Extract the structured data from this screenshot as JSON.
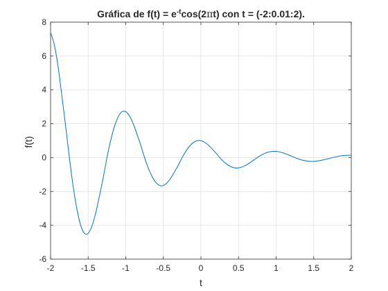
{
  "chart_data": {
    "type": "line",
    "title_main": "Gráfica de f(t) = e",
    "title_sup": "-t",
    "title_mid": "cos(2",
    "title_pi": "π",
    "title_end": "t) con t = (-2:0.01:2).",
    "xlabel": "t",
    "ylabel": "f(t)",
    "xlim": [
      -2,
      2
    ],
    "ylim": [
      -6,
      8
    ],
    "xticks": [
      -2,
      -1.5,
      -1,
      -0.5,
      0,
      0.5,
      1,
      1.5,
      2
    ],
    "xtick_labels": [
      "-2",
      "-1.5",
      "-1",
      "-0.5",
      "0",
      "0.5",
      "1",
      "1.5",
      "2"
    ],
    "yticks": [
      -6,
      -4,
      -2,
      0,
      2,
      4,
      6,
      8
    ],
    "ytick_labels": [
      "-6",
      "-4",
      "-2",
      "0",
      "2",
      "4",
      "6",
      "8"
    ],
    "grid": true,
    "series": [
      {
        "color": "#0072BD",
        "x": [
          -2.0,
          -1.95,
          -1.9,
          -1.85,
          -1.8,
          -1.75,
          -1.7,
          -1.65,
          -1.6,
          -1.55,
          -1.5,
          -1.45,
          -1.4,
          -1.35,
          -1.3,
          -1.25,
          -1.2,
          -1.15,
          -1.1,
          -1.05,
          -1.0,
          -0.95,
          -0.9,
          -0.85,
          -0.8,
          -0.75,
          -0.7,
          -0.65,
          -0.6,
          -0.55,
          -0.5,
          -0.45,
          -0.4,
          -0.35,
          -0.3,
          -0.25,
          -0.2,
          -0.15,
          -0.1,
          -0.05,
          0.0,
          0.05,
          0.1,
          0.15,
          0.2,
          0.25,
          0.3,
          0.35,
          0.4,
          0.45,
          0.5,
          0.55,
          0.6,
          0.65,
          0.7,
          0.75,
          0.8,
          0.85,
          0.9,
          0.95,
          1.0,
          1.05,
          1.1,
          1.15,
          1.2,
          1.25,
          1.3,
          1.35,
          1.4,
          1.45,
          1.5,
          1.55,
          1.6,
          1.65,
          1.7,
          1.75,
          1.8,
          1.85,
          1.9,
          1.95,
          2.0
        ],
        "y": [
          7.389,
          6.663,
          5.363,
          3.654,
          1.869,
          0.0,
          -1.692,
          -3.037,
          -3.991,
          -4.477,
          -4.482,
          -4.045,
          -3.277,
          -2.271,
          -1.19,
          0.0,
          1.026,
          1.841,
          2.42,
          2.714,
          2.718,
          2.453,
          1.988,
          1.377,
          0.718,
          0.0,
          -0.622,
          -1.117,
          -1.468,
          -1.647,
          -1.649,
          -1.488,
          -1.206,
          -0.835,
          -0.436,
          0.0,
          0.378,
          0.677,
          0.89,
          0.999,
          1.0,
          0.903,
          0.731,
          0.507,
          0.264,
          0.0,
          -0.229,
          -0.411,
          -0.54,
          -0.606,
          -0.607,
          -0.548,
          -0.444,
          -0.307,
          -0.16,
          0.0,
          0.139,
          0.249,
          0.328,
          0.368,
          0.368,
          0.332,
          0.269,
          0.186,
          0.097,
          0.0,
          -0.084,
          -0.151,
          -0.199,
          -0.223,
          -0.223,
          -0.201,
          -0.163,
          -0.113,
          -0.059,
          0.0,
          0.051,
          0.092,
          0.121,
          0.135,
          0.135
        ]
      }
    ]
  }
}
